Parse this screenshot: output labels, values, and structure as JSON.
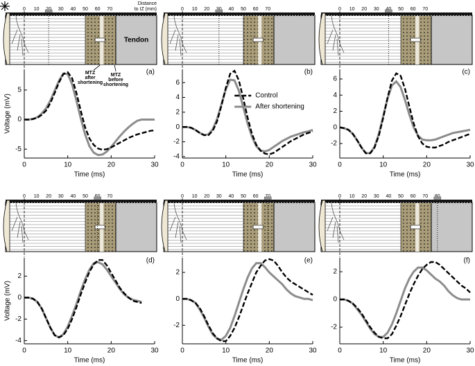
{
  "chart_data": [
    {
      "type": "line",
      "label": "(a)",
      "xlabel": "Time  (ms)",
      "ylabel": "Voltage (mV)",
      "x": [
        0,
        1,
        2,
        3,
        4,
        5,
        6,
        7,
        8,
        9,
        10,
        11,
        12,
        13,
        14,
        15,
        16,
        17,
        18,
        19,
        20,
        21,
        22,
        23,
        24,
        25,
        26,
        27,
        28,
        29,
        30
      ],
      "xlim": [
        0,
        30
      ],
      "xticks": [
        0,
        10,
        20,
        30
      ],
      "ylim": [
        -6.5,
        8.5
      ],
      "yticks": [
        -5,
        0,
        5
      ],
      "series": [
        {
          "color": "#000000",
          "dash": true,
          "values": [
            0,
            0,
            0.1,
            0.3,
            0.8,
            1.5,
            2.8,
            4.5,
            6.3,
            7.7,
            8,
            7,
            4.5,
            1.5,
            -1.3,
            -3.2,
            -4.3,
            -4.9,
            -5.1,
            -5,
            -4.7,
            -4.3,
            -3.9,
            -3.5,
            -3.1,
            -2.8,
            -2.5,
            -2.3,
            -2.1,
            -1.9,
            -1.8
          ]
        },
        {
          "color": "#8c8c8c",
          "dash": false,
          "values": [
            0,
            0,
            0.1,
            0.4,
            1,
            1.9,
            3.2,
            4.9,
            6.6,
            7.8,
            7.7,
            6,
            3.2,
            0.2,
            -2.5,
            -4.5,
            -5.6,
            -6,
            -5.9,
            -5.4,
            -4.6,
            -3.7,
            -2.8,
            -2,
            -1.3,
            -0.7,
            -0.2,
            0,
            0,
            0,
            0
          ]
        }
      ]
    },
    {
      "type": "line",
      "label": "(b)",
      "xlabel": "Time  (ms)",
      "legend": "upper right",
      "x": [
        0,
        1,
        2,
        3,
        4,
        5,
        6,
        7,
        8,
        9,
        10,
        11,
        12,
        13,
        14,
        15,
        16,
        17,
        18,
        19,
        20,
        21,
        22,
        23,
        24,
        25,
        26,
        27,
        28,
        29,
        30
      ],
      "xlim": [
        0,
        30
      ],
      "xticks": [
        0,
        10,
        20,
        30
      ],
      "ylim": [
        -4.2,
        7.8
      ],
      "yticks": [
        -4,
        -2,
        0,
        2,
        4,
        6
      ],
      "series": [
        {
          "name": "Control",
          "color": "#000000",
          "dash": true,
          "values": [
            0,
            0,
            -0.1,
            -0.4,
            -0.8,
            -1.1,
            -1.1,
            -0.5,
            0.8,
            2.9,
            5.3,
            7.2,
            7.6,
            6.3,
            3.9,
            1.3,
            -0.9,
            -2.4,
            -3.2,
            -3.6,
            -3.7,
            -3.5,
            -3.1,
            -2.7,
            -2.3,
            -1.9,
            -1.6,
            -1.3,
            -1,
            -0.8,
            -0.6
          ]
        },
        {
          "name": "After shortening",
          "color": "#8c8c8c",
          "dash": false,
          "values": [
            0,
            0,
            -0.1,
            -0.4,
            -0.8,
            -1.1,
            -1,
            -0.3,
            1.1,
            3.1,
            5.1,
            6.4,
            6.3,
            4.9,
            2.7,
            0.5,
            -1.3,
            -2.6,
            -3.2,
            -3.3,
            -3.1,
            -2.7,
            -2.3,
            -1.9,
            -1.6,
            -1.3,
            -1.1,
            -0.9,
            -0.7,
            -0.6,
            -0.4
          ]
        }
      ]
    },
    {
      "type": "line",
      "label": "(c)",
      "xlabel": "Time  (ms)",
      "x": [
        0,
        1,
        2,
        3,
        4,
        5,
        6,
        7,
        8,
        9,
        10,
        11,
        12,
        13,
        14,
        15,
        16,
        17,
        18,
        19,
        20,
        21,
        22,
        23,
        24,
        25,
        26,
        27,
        28,
        29,
        30
      ],
      "xlim": [
        0,
        30
      ],
      "xticks": [
        0,
        10,
        20,
        30
      ],
      "ylim": [
        -3.8,
        7.2
      ],
      "yticks": [
        -2,
        0,
        2,
        4,
        6
      ],
      "series": [
        {
          "color": "#000000",
          "dash": true,
          "values": [
            0,
            -0.1,
            -0.3,
            -0.8,
            -1.6,
            -2.5,
            -3.2,
            -3.2,
            -2.5,
            -1,
            1.2,
            3.7,
            5.8,
            6.7,
            6.4,
            4.8,
            2.6,
            0.5,
            -1.1,
            -2,
            -2.4,
            -2.5,
            -2.5,
            -2.3,
            -2.1,
            -1.8,
            -1.6,
            -1.4,
            -1.2,
            -1,
            -0.8
          ]
        },
        {
          "color": "#8c8c8c",
          "dash": false,
          "values": [
            0,
            -0.1,
            -0.3,
            -0.8,
            -1.6,
            -2.5,
            -3.2,
            -3.2,
            -2.4,
            -0.8,
            1.4,
            3.6,
            5.2,
            5.7,
            5,
            3.4,
            1.6,
            0,
            -1,
            -1.5,
            -1.6,
            -1.6,
            -1.5,
            -1.3,
            -1.1,
            -0.9,
            -0.7,
            -0.6,
            -0.5,
            -0.4,
            -0.3
          ]
        }
      ]
    },
    {
      "type": "line",
      "label": "(d)",
      "xlabel": "Time  (ms)",
      "ylabel": "Voltage (mV)",
      "x": [
        0,
        1,
        2,
        3,
        4,
        5,
        6,
        7,
        8,
        9,
        10,
        11,
        12,
        13,
        14,
        15,
        16,
        17,
        18,
        19,
        20,
        21,
        22,
        23,
        24,
        25,
        26,
        27
      ],
      "xlim": [
        0,
        30
      ],
      "xticks": [
        0,
        10,
        20,
        30
      ],
      "ylim": [
        -4.3,
        3.7
      ],
      "yticks": [
        -4,
        -2,
        0,
        2
      ],
      "series": [
        {
          "color": "#000000",
          "dash": true,
          "values": [
            0,
            0,
            -0.1,
            -0.4,
            -1,
            -1.9,
            -2.8,
            -3.5,
            -3.7,
            -3.5,
            -2.9,
            -2,
            -0.9,
            0.3,
            1.4,
            2.4,
            3.1,
            3.5,
            3.5,
            3,
            2.3,
            1.6,
            0.9,
            0.4,
            0,
            -0.3,
            -0.4,
            -0.5
          ]
        },
        {
          "color": "#8c8c8c",
          "dash": false,
          "values": [
            0,
            0,
            -0.1,
            -0.4,
            -1,
            -1.9,
            -2.8,
            -3.5,
            -3.7,
            -3.4,
            -2.7,
            -1.7,
            -0.6,
            0.6,
            1.7,
            2.6,
            3.2,
            3.3,
            3.1,
            2.6,
            2,
            1.4,
            0.8,
            0.3,
            0,
            -0.2,
            -0.3,
            -0.4
          ]
        }
      ]
    },
    {
      "type": "line",
      "label": "(e)",
      "xlabel": "Time  (ms)",
      "x": [
        0,
        1,
        2,
        3,
        4,
        5,
        6,
        7,
        8,
        9,
        10,
        11,
        12,
        13,
        14,
        15,
        16,
        17,
        18,
        19,
        20,
        21,
        22,
        23,
        24,
        25,
        26,
        27,
        28,
        29,
        30
      ],
      "xlim": [
        0,
        30
      ],
      "xticks": [
        0,
        10,
        20,
        30
      ],
      "ylim": [
        -3.4,
        3.1
      ],
      "yticks": [
        -2,
        0,
        2
      ],
      "series": [
        {
          "color": "#000000",
          "dash": true,
          "values": [
            0,
            0,
            -0.1,
            -0.3,
            -0.7,
            -1.3,
            -2,
            -2.6,
            -3,
            -3.2,
            -3.2,
            -2.8,
            -2.2,
            -1.4,
            -0.5,
            0.4,
            1.2,
            2,
            2.5,
            2.9,
            3,
            2.9,
            2.5,
            2,
            1.6,
            1.3,
            1.1,
            0.9,
            0.7,
            0.5,
            0.3
          ]
        },
        {
          "color": "#8c8c8c",
          "dash": false,
          "values": [
            0,
            0,
            -0.1,
            -0.3,
            -0.8,
            -1.4,
            -2.1,
            -2.7,
            -3,
            -3.1,
            -2.8,
            -2.2,
            -1.3,
            -0.3,
            0.7,
            1.6,
            2.3,
            2.7,
            2.7,
            2.4,
            2,
            1.7,
            1.4,
            1.1,
            0.7,
            0.4,
            0.2,
            0.1,
            0,
            0,
            -0.1
          ]
        }
      ]
    },
    {
      "type": "line",
      "label": "(f)",
      "xlabel": "Time  (ms)",
      "x": [
        0,
        1,
        2,
        3,
        4,
        5,
        6,
        7,
        8,
        9,
        10,
        11,
        12,
        13,
        14,
        15,
        16,
        17,
        18,
        19,
        20,
        21,
        22,
        23,
        24,
        25,
        26,
        27,
        28,
        29,
        30
      ],
      "xlim": [
        0,
        30
      ],
      "xticks": [
        0,
        10,
        20,
        30
      ],
      "ylim": [
        -3.2,
        3.0
      ],
      "yticks": [
        -2,
        0,
        2
      ],
      "series": [
        {
          "color": "#000000",
          "dash": true,
          "values": [
            0,
            0,
            -0.1,
            -0.3,
            -0.6,
            -1,
            -1.5,
            -2,
            -2.4,
            -2.7,
            -2.8,
            -2.8,
            -2.5,
            -1.9,
            -1.2,
            -0.4,
            0.4,
            1.1,
            1.7,
            2.2,
            2.5,
            2.7,
            2.7,
            2.5,
            2.2,
            1.9,
            1.6,
            1.3,
            1,
            0.8,
            0.5
          ]
        },
        {
          "color": "#8c8c8c",
          "dash": false,
          "values": [
            0,
            0,
            -0.1,
            -0.3,
            -0.7,
            -1.1,
            -1.6,
            -2.1,
            -2.5,
            -2.7,
            -2.7,
            -2.4,
            -1.8,
            -1,
            -0.1,
            0.8,
            1.5,
            2,
            2.3,
            2.3,
            2.1,
            1.8,
            1.5,
            1.3,
            1,
            0.6,
            0.3,
            0.1,
            0,
            0,
            0
          ]
        }
      ]
    }
  ],
  "diagrams": [
    {
      "scale_ticks": [
        0,
        10,
        20,
        30,
        40,
        50,
        60,
        70
      ],
      "electrode": 20,
      "distance_label": [
        "Distance",
        "to IZ (mm)"
      ],
      "tendon_label": "Tendon",
      "mtz_after": [
        "MTZ",
        "after",
        "shortening"
      ],
      "mtz_before": [
        "MTZ",
        "before",
        "shortening"
      ]
    },
    {
      "scale_ticks": [
        0,
        10,
        20,
        30,
        40,
        50,
        60,
        70
      ],
      "electrode": 30
    },
    {
      "scale_ticks": [
        0,
        10,
        20,
        30,
        40,
        50,
        60,
        70
      ],
      "electrode": 40
    },
    {
      "scale_ticks": [
        0,
        10,
        20,
        30,
        40,
        50,
        60,
        70
      ],
      "electrode": 60
    },
    {
      "scale_ticks": [
        0,
        10,
        20,
        30,
        40,
        50,
        60,
        70
      ],
      "electrode": 70
    },
    {
      "scale_ticks": [
        0,
        10,
        20,
        30,
        40,
        50,
        60,
        70,
        80
      ],
      "electrode": 80
    }
  ]
}
